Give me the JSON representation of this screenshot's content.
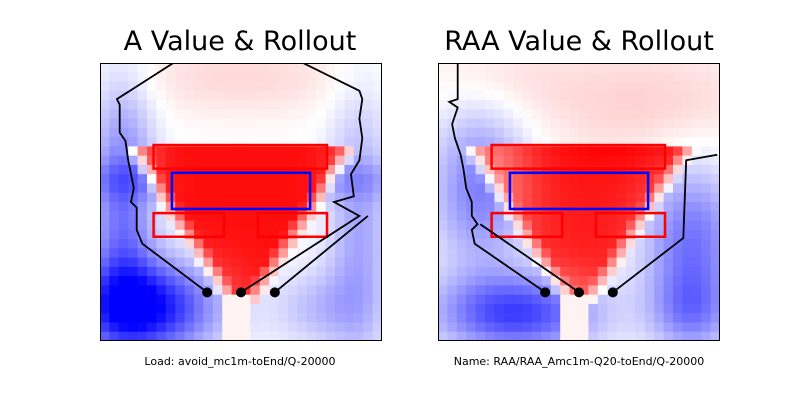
{
  "figure": {
    "panels": [
      {
        "title": "A Value & Rollout",
        "caption": "Load: avoid_mc1m-toEnd/Q-20000"
      },
      {
        "title": "RAA Value & Rollout",
        "caption": "Name: RAA/RAA_Amc1m-Q20-toEnd/Q-20000"
      }
    ]
  },
  "chart_data": [
    {
      "type": "heatmap",
      "title": "A Value & Rollout",
      "colormap": "bwr",
      "axes_ticks": "none",
      "value_field": {
        "description_level": "red region (positive) in center-top under red target rectangles, blue (negative) at sides and bottom-left",
        "red_zone": "center wedge narrowing downward toward start points",
        "blue_zone": "left side and bottom-left corner strongly negative"
      },
      "rectangles": [
        {
          "role": "target",
          "color": "#ff0000",
          "x0": 0.19,
          "y0": 0.295,
          "x1": 0.805,
          "y1": 0.38
        },
        {
          "role": "obstacle",
          "color": "#0000ff",
          "x0": 0.255,
          "y0": 0.395,
          "x1": 0.745,
          "y1": 0.525
        },
        {
          "role": "obstacle",
          "color": "#ff0000",
          "x0": 0.19,
          "y0": 0.54,
          "x1": 0.44,
          "y1": 0.625
        },
        {
          "role": "obstacle",
          "color": "#ff0000",
          "x0": 0.56,
          "y0": 0.54,
          "x1": 0.805,
          "y1": 0.625
        }
      ],
      "start_points": [
        {
          "x": 0.38,
          "y": 0.825
        },
        {
          "x": 0.5,
          "y": 0.825
        },
        {
          "x": 0.62,
          "y": 0.825
        }
      ],
      "trajectories": [
        {
          "points": [
            [
              0.38,
              0.825
            ],
            [
              0.15,
              0.65
            ],
            [
              0.13,
              0.6
            ],
            [
              0.13,
              0.52
            ],
            [
              0.11,
              0.5
            ],
            [
              0.12,
              0.45
            ],
            [
              0.1,
              0.35
            ],
            [
              0.09,
              0.28
            ],
            [
              0.07,
              0.25
            ],
            [
              0.07,
              0.15
            ],
            [
              0.06,
              0.13
            ],
            [
              0.26,
              0.0
            ]
          ]
        },
        {
          "points": [
            [
              0.5,
              0.825
            ],
            [
              0.92,
              0.55
            ],
            [
              0.83,
              0.5
            ],
            [
              0.9,
              0.48
            ],
            [
              0.89,
              0.4
            ],
            [
              0.92,
              0.35
            ],
            [
              0.93,
              0.27
            ],
            [
              0.92,
              0.2
            ],
            [
              0.93,
              0.13
            ],
            [
              0.92,
              0.1
            ],
            [
              0.72,
              0.0
            ]
          ]
        },
        {
          "points": [
            [
              0.62,
              0.825
            ],
            [
              0.95,
              0.55
            ]
          ]
        }
      ]
    },
    {
      "type": "heatmap",
      "title": "RAA Value & Rollout",
      "colormap": "bwr",
      "axes_ticks": "none",
      "value_field": {
        "description_level": "mild red at top, strong red wedge under target rectangle, blue on left and bottom-left, blue band on right",
        "red_zone": "center wedge narrowing downward toward start points",
        "blue_zone": "left side, bottom-left and right-center region negative"
      },
      "rectangles": [
        {
          "role": "target",
          "color": "#ff0000",
          "x0": 0.19,
          "y0": 0.295,
          "x1": 0.805,
          "y1": 0.38
        },
        {
          "role": "obstacle",
          "color": "#0000ff",
          "x0": 0.255,
          "y0": 0.395,
          "x1": 0.745,
          "y1": 0.525
        },
        {
          "role": "obstacle",
          "color": "#ff0000",
          "x0": 0.19,
          "y0": 0.54,
          "x1": 0.44,
          "y1": 0.625
        },
        {
          "role": "obstacle",
          "color": "#ff0000",
          "x0": 0.56,
          "y0": 0.54,
          "x1": 0.805,
          "y1": 0.625
        }
      ],
      "start_points": [
        {
          "x": 0.38,
          "y": 0.825
        },
        {
          "x": 0.5,
          "y": 0.825
        },
        {
          "x": 0.62,
          "y": 0.825
        }
      ],
      "trajectories": [
        {
          "points": [
            [
              0.38,
              0.825
            ],
            [
              0.13,
              0.65
            ],
            [
              0.12,
              0.6
            ],
            [
              0.14,
              0.58
            ],
            [
              0.12,
              0.55
            ],
            [
              0.12,
              0.5
            ],
            [
              0.1,
              0.45
            ],
            [
              0.09,
              0.38
            ],
            [
              0.08,
              0.33
            ],
            [
              0.06,
              0.27
            ],
            [
              0.05,
              0.22
            ],
            [
              0.07,
              0.16
            ],
            [
              0.04,
              0.14
            ],
            [
              0.07,
              0.13
            ],
            [
              0.07,
              0.0
            ]
          ]
        },
        {
          "points": [
            [
              0.5,
              0.825
            ],
            [
              0.15,
              0.58
            ]
          ]
        },
        {
          "points": [
            [
              0.62,
              0.825
            ],
            [
              0.87,
              0.63
            ],
            [
              0.88,
              0.35
            ],
            [
              0.99,
              0.33
            ]
          ]
        }
      ]
    }
  ]
}
